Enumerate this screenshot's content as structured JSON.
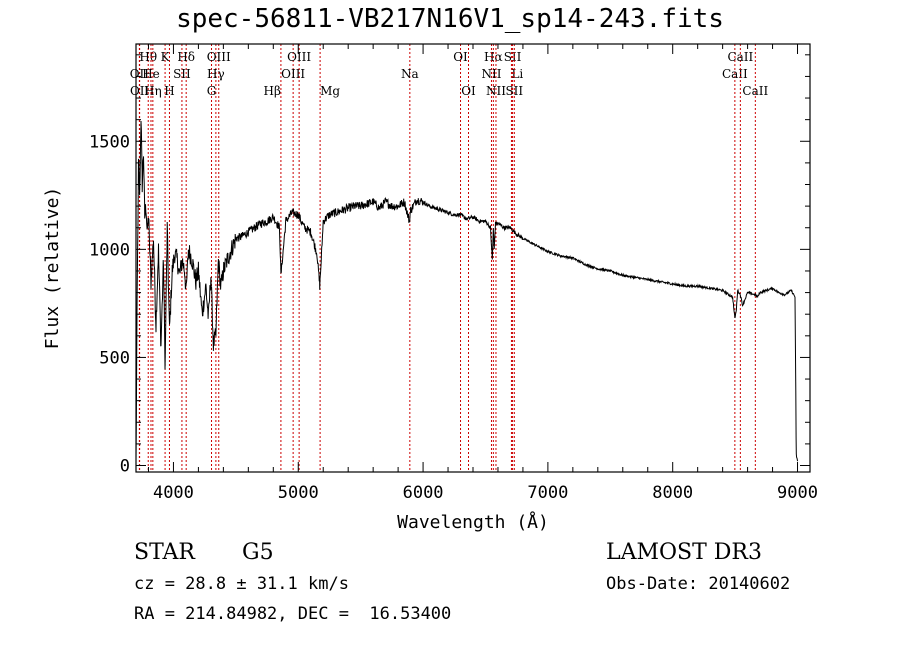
{
  "title": "spec-56811-VB217N16V1_sp14-243.fits",
  "chart_data": {
    "type": "line",
    "xlabel": "Wavelength (Å)",
    "ylabel": "Flux (relative)",
    "xlim": [
      3700,
      9100
    ],
    "ylim": [
      -30,
      1950
    ],
    "xticks": [
      4000,
      5000,
      6000,
      7000,
      8000,
      9000
    ],
    "yticks": [
      0,
      500,
      1000,
      1500
    ],
    "colors": {
      "axes": "#000000",
      "spectrum": "#000000",
      "lines": "#cc0000"
    },
    "spectrum": {
      "x": [
        3700,
        3710,
        3720,
        3730,
        3740,
        3750,
        3760,
        3770,
        3780,
        3790,
        3800,
        3820,
        3840,
        3860,
        3880,
        3900,
        3920,
        3933,
        3950,
        3968,
        3990,
        4010,
        4030,
        4050,
        4070,
        4090,
        4102,
        4120,
        4150,
        4180,
        4200,
        4230,
        4260,
        4280,
        4300,
        4320,
        4340,
        4360,
        4380,
        4400,
        4450,
        4500,
        4550,
        4600,
        4650,
        4700,
        4750,
        4800,
        4850,
        4861,
        4880,
        4900,
        4950,
        5000,
        5050,
        5100,
        5150,
        5172,
        5185,
        5200,
        5250,
        5300,
        5350,
        5400,
        5450,
        5500,
        5550,
        5600,
        5650,
        5700,
        5750,
        5800,
        5850,
        5890,
        5900,
        5950,
        6000,
        6050,
        6100,
        6150,
        6200,
        6250,
        6300,
        6350,
        6400,
        6450,
        6500,
        6540,
        6555,
        6563,
        6570,
        6580,
        6600,
        6650,
        6700,
        6750,
        6800,
        6900,
        7000,
        7100,
        7200,
        7300,
        7400,
        7500,
        7600,
        7700,
        7800,
        7900,
        8000,
        8100,
        8200,
        8300,
        8400,
        8450,
        8480,
        8498,
        8510,
        8520,
        8542,
        8560,
        8600,
        8662,
        8680,
        8700,
        8750,
        8800,
        8850,
        8900,
        8950,
        8980,
        8990,
        9000
      ],
      "y": [
        20,
        800,
        1400,
        1250,
        1620,
        1300,
        1450,
        1150,
        1200,
        1080,
        1150,
        850,
        1050,
        650,
        1000,
        550,
        950,
        450,
        1100,
        620,
        900,
        980,
        950,
        880,
        950,
        900,
        800,
        1000,
        950,
        850,
        900,
        700,
        830,
        680,
        880,
        560,
        600,
        950,
        820,
        900,
        980,
        1050,
        1060,
        1080,
        1100,
        1120,
        1130,
        1150,
        1100,
        880,
        1000,
        1130,
        1170,
        1160,
        1100,
        1080,
        980,
        830,
        960,
        1130,
        1160,
        1170,
        1180,
        1190,
        1200,
        1200,
        1210,
        1220,
        1190,
        1220,
        1200,
        1200,
        1220,
        1130,
        1180,
        1230,
        1220,
        1200,
        1190,
        1180,
        1170,
        1160,
        1160,
        1140,
        1150,
        1130,
        1130,
        1100,
        950,
        1100,
        1000,
        1120,
        1120,
        1100,
        1100,
        1070,
        1050,
        1020,
        990,
        970,
        960,
        930,
        910,
        900,
        880,
        870,
        860,
        850,
        840,
        830,
        830,
        820,
        810,
        790,
        780,
        680,
        720,
        810,
        790,
        740,
        800,
        790,
        780,
        800,
        810,
        820,
        800,
        790,
        810,
        780,
        50,
        20
      ]
    },
    "line_markers": [
      {
        "label": "Hδ",
        "x": 4102,
        "row": 0,
        "anchor": "middle"
      },
      {
        "label": "Hγ",
        "x": 4340,
        "row": 1,
        "anchor": "middle"
      },
      {
        "label": "Hβ",
        "x": 4861,
        "row": 2,
        "anchor": "end"
      },
      {
        "label": "Hα",
        "x": 6563,
        "row": 0,
        "anchor": "middle"
      },
      {
        "label": "K",
        "x": 3933,
        "row": 0,
        "anchor": "middle"
      },
      {
        "label": "H",
        "x": 3968,
        "row": 2,
        "anchor": "middle"
      },
      {
        "label": "G",
        "x": 4305,
        "row": 2,
        "anchor": "middle"
      },
      {
        "label": "Mg",
        "x": 5175,
        "row": 2,
        "anchor": "start"
      },
      {
        "label": "Na",
        "x": 5894,
        "row": 1,
        "anchor": "middle"
      },
      {
        "label": "OIII",
        "x": 4363,
        "row": 0,
        "anchor": "middle"
      },
      {
        "label": "OIII",
        "x": 4959,
        "row": 1,
        "anchor": "middle"
      },
      {
        "label": "OIII",
        "x": 5007,
        "row": 0,
        "anchor": "middle"
      },
      {
        "label": "OII",
        "x": 3727,
        "row": 1,
        "anchor": "middle"
      },
      {
        "label": "OII",
        "x": 3729,
        "row": 2,
        "anchor": "middle"
      },
      {
        "label": "Hθ",
        "x": 3798,
        "row": 0,
        "anchor": "middle"
      },
      {
        "label": "He",
        "x": 3820,
        "row": 1,
        "anchor": "middle"
      },
      {
        "label": "Hη",
        "x": 3835,
        "row": 2,
        "anchor": "middle"
      },
      {
        "label": "SII",
        "x": 4068,
        "row": 1,
        "anchor": "middle"
      },
      {
        "label": "OI",
        "x": 6300,
        "row": 0,
        "anchor": "middle"
      },
      {
        "label": "OI",
        "x": 6364,
        "row": 2,
        "anchor": "middle"
      },
      {
        "label": "NII",
        "x": 6548,
        "row": 1,
        "anchor": "middle"
      },
      {
        "label": "NII",
        "x": 6584,
        "row": 2,
        "anchor": "middle"
      },
      {
        "label": "SII",
        "x": 6717,
        "row": 0,
        "anchor": "middle"
      },
      {
        "label": "Li",
        "x": 6708,
        "row": 1,
        "anchor": "start"
      },
      {
        "label": "SII",
        "x": 6731,
        "row": 2,
        "anchor": "middle"
      },
      {
        "label": "CaII",
        "x": 8498,
        "row": 1,
        "anchor": "middle"
      },
      {
        "label": "CaII",
        "x": 8542,
        "row": 0,
        "anchor": "middle"
      },
      {
        "label": "CaII",
        "x": 8662,
        "row": 2,
        "anchor": "middle"
      }
    ]
  },
  "info": {
    "class_label": "STAR",
    "subclass": "G5",
    "survey": "LAMOST DR3",
    "redshift": "cz = 28.8 ± 31.1 km/s",
    "obs_date": "Obs-Date: 20140602",
    "coords": "RA = 214.84982, DEC =  16.53400"
  }
}
